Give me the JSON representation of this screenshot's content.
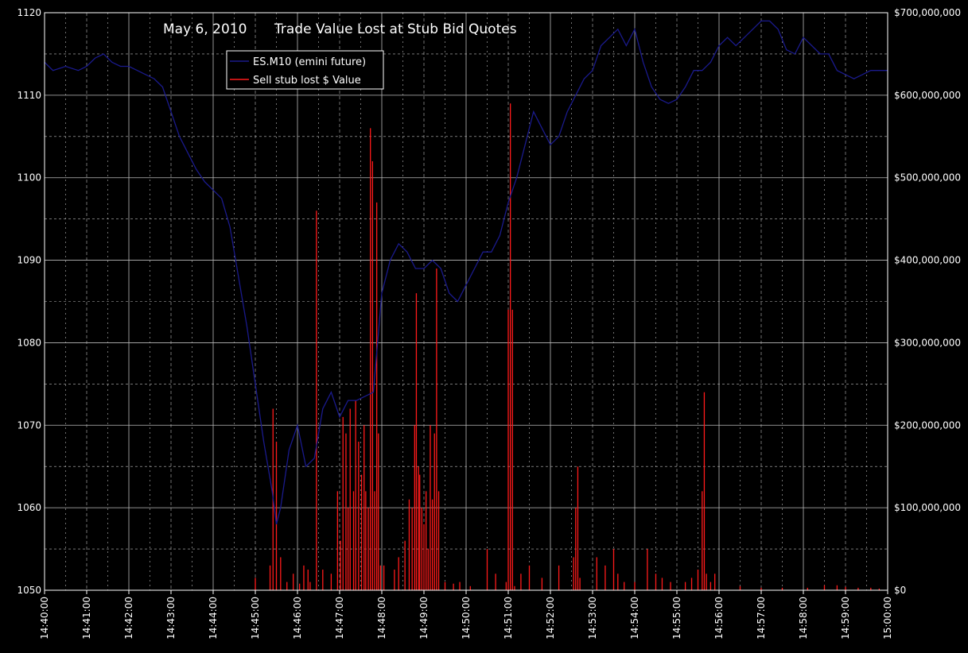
{
  "chart_data": {
    "type": "line",
    "title_date": "May 6, 2010",
    "title": "Trade Value Lost at Stub Bid Quotes",
    "x_ticks": [
      "14:40:00",
      "14:41:00",
      "14:42:00",
      "14:43:00",
      "14:44:00",
      "14:45:00",
      "14:46:00",
      "14:47:00",
      "14:48:00",
      "14:49:00",
      "14:50:00",
      "14:51:00",
      "14:52:00",
      "14:53:00",
      "14:54:00",
      "14:55:00",
      "14:56:00",
      "14:57:00",
      "14:58:00",
      "14:59:00",
      "15:00:00"
    ],
    "x_range_minutes": [
      0,
      20
    ],
    "y_left": {
      "range": [
        1050,
        1120
      ],
      "ticks": [
        "1050",
        "1060",
        "1070",
        "1080",
        "1090",
        "1100",
        "1110",
        "1120"
      ]
    },
    "y_right": {
      "range": [
        0,
        700000000
      ],
      "ticks": [
        "$0",
        "$100,000,000",
        "$200,000,000",
        "$300,000,000",
        "$400,000,000",
        "$500,000,000",
        "$600,000,000",
        "$700,000,000"
      ]
    },
    "grid": true,
    "legend_placement": "top-left",
    "colors": {
      "background": "#000000",
      "axis": "#ffffff",
      "grid": "#bbbbbb",
      "price": "#1a1a8c",
      "stub": "#ff1a1a"
    },
    "series": [
      {
        "name": "ES.M10 (emini future)",
        "axis": "left",
        "x": [
          0,
          0.2,
          0.5,
          0.8,
          1.0,
          1.2,
          1.4,
          1.6,
          1.8,
          2.0,
          2.2,
          2.4,
          2.6,
          2.8,
          3.0,
          3.2,
          3.4,
          3.6,
          3.8,
          4.0,
          4.2,
          4.4,
          4.6,
          4.8,
          5.0,
          5.2,
          5.4,
          5.5,
          5.6,
          5.8,
          6.0,
          6.2,
          6.4,
          6.6,
          6.8,
          7.0,
          7.2,
          7.4,
          7.6,
          7.8,
          8.0,
          8.2,
          8.4,
          8.6,
          8.8,
          9.0,
          9.2,
          9.4,
          9.6,
          9.8,
          10.0,
          10.2,
          10.4,
          10.6,
          10.8,
          11.0,
          11.2,
          11.4,
          11.6,
          11.8,
          12.0,
          12.2,
          12.4,
          12.6,
          12.8,
          13.0,
          13.2,
          13.4,
          13.6,
          13.8,
          14.0,
          14.2,
          14.4,
          14.6,
          14.8,
          15.0,
          15.2,
          15.4,
          15.6,
          15.8,
          16.0,
          16.2,
          16.4,
          16.6,
          16.8,
          17.0,
          17.2,
          17.4,
          17.6,
          17.8,
          18.0,
          18.2,
          18.4,
          18.6,
          18.8,
          19.0,
          19.2,
          19.4,
          19.6,
          19.8,
          20.0
        ],
        "values": [
          1114,
          1113,
          1113.5,
          1113,
          1113.5,
          1114.5,
          1115,
          1114,
          1113.5,
          1113.5,
          1113,
          1112.5,
          1112,
          1111,
          1108,
          1105,
          1103,
          1101,
          1099.5,
          1098.5,
          1097.5,
          1094,
          1088,
          1082,
          1075,
          1068,
          1062,
          1058,
          1060,
          1067,
          1070,
          1065,
          1066,
          1072,
          1074,
          1071,
          1073,
          1073,
          1073.5,
          1074,
          1086,
          1090,
          1092,
          1091,
          1089,
          1089,
          1090,
          1089,
          1086,
          1085,
          1087,
          1089,
          1091,
          1091,
          1093,
          1097,
          1100,
          1104,
          1108,
          1106,
          1104,
          1105,
          1108,
          1110,
          1112,
          1113,
          1116,
          1117,
          1118,
          1116,
          1118,
          1114,
          1111,
          1109.5,
          1109,
          1109.5,
          1111,
          1113,
          1113,
          1114,
          1116,
          1117,
          1116,
          1117,
          1118,
          1119,
          1119,
          1118,
          1115.5,
          1115,
          1117,
          1116,
          1115,
          1115,
          1113,
          1112.5,
          1112,
          1112.5,
          1113,
          1113,
          1113
        ]
      },
      {
        "name": "Sell stub lost $ Value",
        "axis": "right",
        "x": [
          5.0,
          5.35,
          5.42,
          5.5,
          5.6,
          5.75,
          5.9,
          6.05,
          6.15,
          6.25,
          6.3,
          6.45,
          6.6,
          6.8,
          6.95,
          7.02,
          7.08,
          7.15,
          7.2,
          7.25,
          7.33,
          7.38,
          7.45,
          7.52,
          7.58,
          7.62,
          7.68,
          7.73,
          7.78,
          7.83,
          7.88,
          7.92,
          7.97,
          8.05,
          8.3,
          8.4,
          8.55,
          8.65,
          8.72,
          8.78,
          8.82,
          8.87,
          8.9,
          8.95,
          9.0,
          9.05,
          9.1,
          9.15,
          9.2,
          9.25,
          9.3,
          9.35,
          9.5,
          9.7,
          9.85,
          10.1,
          10.5,
          10.7,
          10.95,
          11.0,
          11.05,
          11.1,
          11.15,
          11.3,
          11.5,
          11.8,
          12.2,
          12.55,
          12.6,
          12.65,
          12.7,
          13.1,
          13.3,
          13.5,
          13.6,
          13.75,
          14.0,
          14.3,
          14.5,
          14.65,
          14.85,
          15.2,
          15.35,
          15.5,
          15.6,
          15.65,
          15.7,
          15.8,
          15.9,
          16.5,
          17.0,
          17.5,
          18.1,
          18.5,
          18.8,
          19.0,
          19.3,
          19.6,
          19.8
        ],
        "values": [
          15000000,
          30000000,
          220000000,
          180000000,
          40000000,
          10000000,
          20000000,
          8000000,
          30000000,
          25000000,
          10000000,
          460000000,
          25000000,
          20000000,
          120000000,
          60000000,
          210000000,
          190000000,
          100000000,
          220000000,
          120000000,
          230000000,
          180000000,
          140000000,
          200000000,
          120000000,
          100000000,
          560000000,
          520000000,
          120000000,
          470000000,
          190000000,
          30000000,
          30000000,
          25000000,
          40000000,
          60000000,
          110000000,
          100000000,
          200000000,
          360000000,
          150000000,
          140000000,
          100000000,
          80000000,
          120000000,
          50000000,
          200000000,
          110000000,
          190000000,
          390000000,
          120000000,
          10000000,
          8000000,
          10000000,
          5000000,
          50000000,
          20000000,
          10000000,
          340000000,
          590000000,
          340000000,
          5000000,
          20000000,
          30000000,
          15000000,
          30000000,
          40000000,
          100000000,
          150000000,
          15000000,
          40000000,
          30000000,
          50000000,
          20000000,
          10000000,
          10000000,
          50000000,
          20000000,
          15000000,
          10000000,
          10000000,
          15000000,
          25000000,
          120000000,
          240000000,
          20000000,
          10000000,
          20000000,
          5000000,
          3000000,
          3000000,
          3000000,
          6000000,
          6000000,
          4000000,
          3000000,
          3000000,
          2000000
        ]
      }
    ]
  }
}
